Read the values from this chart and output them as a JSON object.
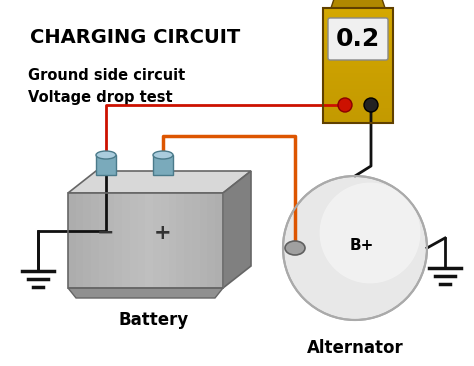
{
  "title": "CHARGING CIRCUIT",
  "subtitle_line1": "Ground side circuit",
  "subtitle_line2": "Voltage drop test",
  "meter_value": "0.2",
  "battery_label": "Battery",
  "alternator_label": "Alternator",
  "b_plus_label": "B+",
  "bg_color": "#ffffff",
  "title_color": "#000000",
  "subtitle_color": "#000000",
  "meter_body_top": "#d4a800",
  "meter_body_mid": "#b08800",
  "meter_body_bot": "#806000",
  "meter_display_color": "#f0f0f0",
  "meter_text_color": "#000000",
  "battery_face_color": "#b8b8b8",
  "battery_top_color": "#d8d8d8",
  "battery_right_color": "#808080",
  "battery_terminal_color": "#7aaabb",
  "battery_terminal_top": "#aaccdd",
  "wire_red_color": "#cc1100",
  "wire_orange_color": "#dd5500",
  "wire_black_color": "#111111",
  "alt_body_color": "#e8e8e8",
  "alt_left_color": "#aaaaaa",
  "alt_highlight": "#f8f8f8",
  "ground_color": "#111111",
  "neg_label_color": "#333333",
  "pos_label_color": "#333333"
}
